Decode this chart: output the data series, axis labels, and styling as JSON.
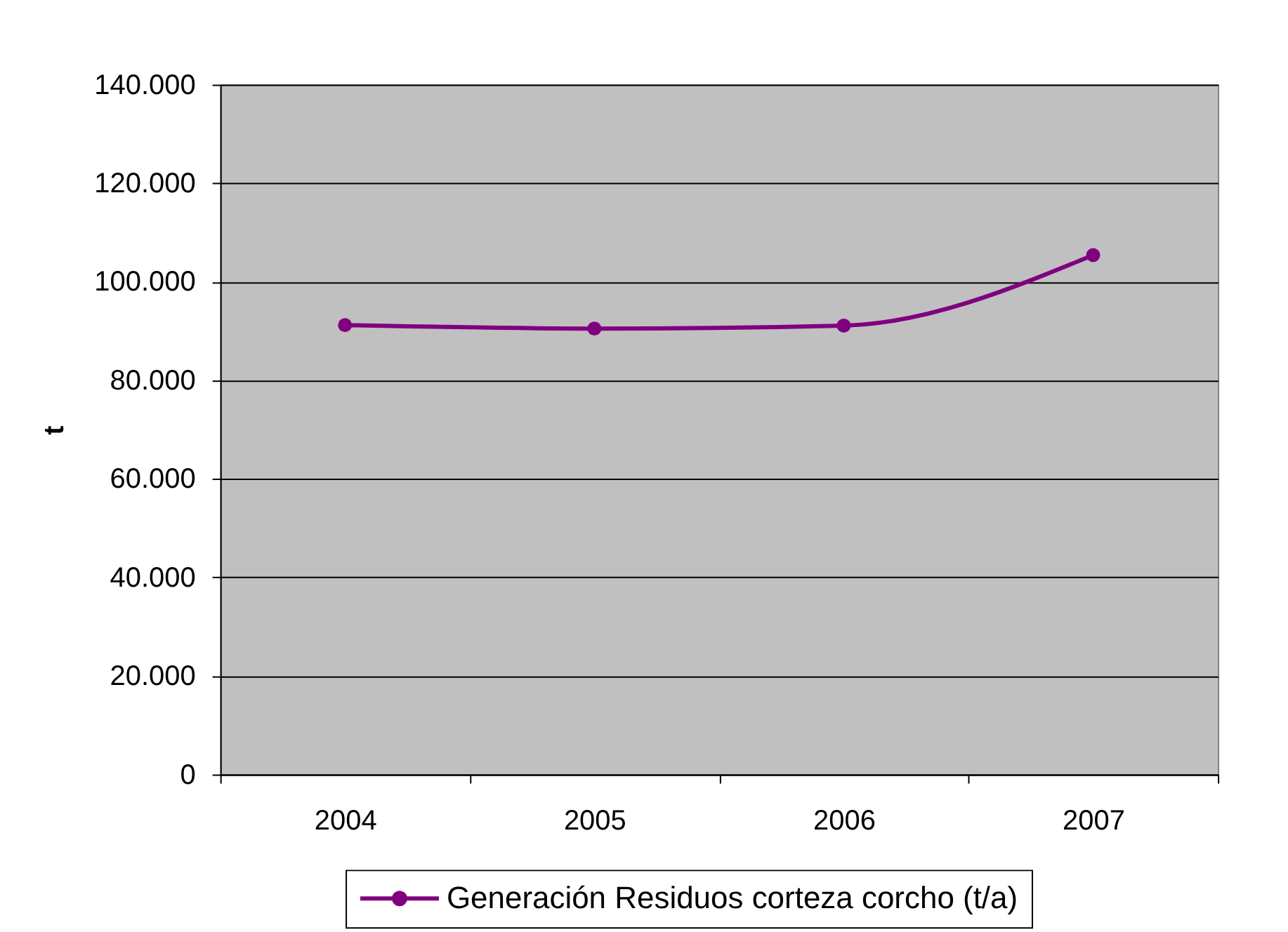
{
  "chart_data": {
    "type": "line",
    "ylabel": "t",
    "categories": [
      "2004",
      "2005",
      "2006",
      "2007"
    ],
    "series": [
      {
        "name": "Generación Residuos corteza corcho (t/a)",
        "color": "#800080",
        "values": [
          91200,
          90500,
          91100,
          105400
        ]
      }
    ],
    "ylim": [
      0,
      140000
    ],
    "yticks": [
      0,
      {
        "value": 20000,
        "label": "20.000"
      },
      {
        "value": 40000,
        "label": "40.000"
      },
      {
        "value": 60000,
        "label": "60.000"
      },
      {
        "value": 80000,
        "label": "80.000"
      },
      {
        "value": 100000,
        "label": "100.000"
      },
      {
        "value": 120000,
        "label": "120.000"
      },
      {
        "value": 140000,
        "label": "140.000"
      }
    ],
    "grid": "y",
    "legend": "bottom",
    "marker": "circle",
    "line_style": "solid"
  }
}
